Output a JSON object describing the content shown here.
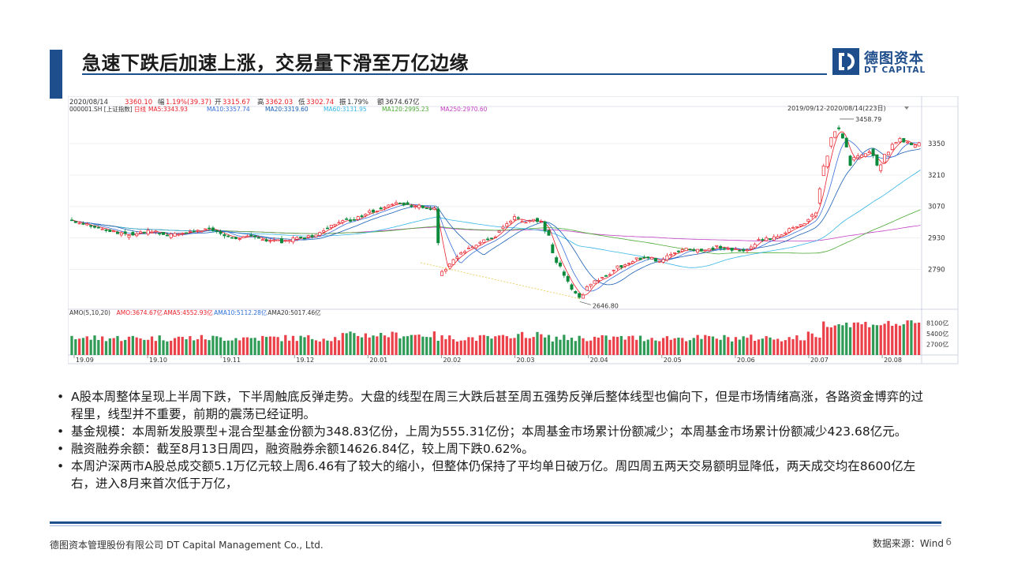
{
  "slide": {
    "title": "急速下跌后加速上涨，交易量下滑至万亿边缘",
    "logo_cn": "德图资本",
    "logo_en": "DT CAPITAL",
    "footer_left": "德图资本管理股份有限公司  DT Capital Management  Co., Ltd.",
    "source": "数据来源：Wind",
    "page_number": "6",
    "colors": {
      "accent": "#1f4e8c",
      "up": "#e8202a",
      "down": "#0a8a3a"
    }
  },
  "bullets": [
    "A股本周整体呈现上半周下跌，下半周触底反弹走势。大盘的线型在周三大跌后甚至周五强势反弹后整体线型也偏向下，但是市场情绪高涨，各路资金博弈的过程里，线型并不重要，前期的震荡已经证明。",
    "基金规模：本周新发股票型+混合型基金份额为348.83亿份，上周为555.31亿份；本周基金市场累计份额减少；本周基金市场累计份额减少423.68亿元。",
    "融资融券余额：截至8月13日周四，融资融券余额14626.84亿，较上周下跌0.62%。",
    "本周沪深两市A股总成交额5.1万亿元较上周6.46有了较大的缩小，但整体仍保持了平均单日破万亿。周四周五两天交易额明显降低，两天成交均在8600亿左右，进入8月来首次低于万亿，"
  ],
  "chart_data": {
    "type": "candlestick",
    "header": {
      "date": "2020/08/14",
      "price": "3360.10",
      "change_label": "幅",
      "change": "1.19%(39.37)",
      "open_label": "开",
      "open": "3315.67",
      "high_label": "高",
      "high": "3362.03",
      "low_label": "低",
      "low": "3302.74",
      "amp_label": "振",
      "amp": "1.79%",
      "amount_label": "额",
      "amount": "3674.67亿",
      "code": "000001.SH [上证指数]",
      "period": "日线",
      "range": "2019/09/12-2020/08/14(223日)"
    },
    "ma_legend": [
      {
        "name": "MA5:3343.93",
        "color": "#e8202a"
      },
      {
        "name": "MA10:3357.74",
        "color": "#3a6fd8"
      },
      {
        "name": "MA20:3319.60",
        "color": "#1a5fb4"
      },
      {
        "name": "MA60:3131.95",
        "color": "#36b6e6"
      },
      {
        "name": "MA120:2995.23",
        "color": "#4aa832"
      },
      {
        "name": "MA250:2970.60",
        "color": "#c040c0"
      }
    ],
    "y_ticks": [
      3350,
      3210,
      3070,
      2930,
      2790
    ],
    "ylim": [
      2620,
      3490
    ],
    "x_ticks": [
      "19.09",
      "19.10",
      "19.11",
      "19.12",
      "20.01",
      "20.02",
      "20.03",
      "20.04",
      "20.05",
      "20.06",
      "20.07",
      "20.08"
    ],
    "annotations": {
      "high": "3458.79",
      "low": "2646.80"
    },
    "volume_legend": [
      {
        "name": "AMO(5,10,20)",
        "color": "#333333"
      },
      {
        "name": "AMO:3674.67亿",
        "color": "#e8202a"
      },
      {
        "name": "AMA5:4552.93亿",
        "color": "#e8202a"
      },
      {
        "name": "AMA10:5112.28亿",
        "color": "#2a6fd8"
      },
      {
        "name": "AMA20:5017.46亿",
        "color": "#333333"
      }
    ],
    "volume_ticks": [
      "8100亿",
      "5400亿",
      "2700亿"
    ],
    "volume_ylim": [
      0,
      10000
    ],
    "close_path": [
      [
        0,
        3010
      ],
      [
        6,
        2990
      ],
      [
        12,
        2975
      ],
      [
        18,
        2960
      ],
      [
        24,
        2940
      ],
      [
        30,
        2955
      ],
      [
        36,
        2960
      ],
      [
        42,
        2940
      ],
      [
        48,
        2950
      ],
      [
        54,
        2965
      ],
      [
        60,
        2970
      ],
      [
        66,
        2940
      ],
      [
        72,
        2930
      ],
      [
        78,
        2935
      ],
      [
        84,
        2920
      ],
      [
        90,
        2915
      ],
      [
        96,
        2925
      ],
      [
        102,
        2935
      ],
      [
        108,
        2960
      ],
      [
        114,
        3005
      ],
      [
        120,
        3010
      ],
      [
        126,
        3040
      ],
      [
        132,
        3060
      ],
      [
        138,
        3085
      ],
      [
        144,
        3075
      ],
      [
        150,
        3070
      ],
      [
        156,
        3060
      ],
      [
        158,
        2760
      ],
      [
        162,
        2820
      ],
      [
        168,
        2870
      ],
      [
        174,
        2900
      ],
      [
        180,
        2930
      ],
      [
        186,
        2990
      ],
      [
        190,
        3020
      ],
      [
        194,
        3000
      ],
      [
        198,
        3010
      ],
      [
        202,
        3000
      ],
      [
        206,
        2870
      ],
      [
        210,
        2780
      ],
      [
        214,
        2700
      ],
      [
        218,
        2660
      ],
      [
        222,
        2730
      ],
      [
        228,
        2760
      ],
      [
        234,
        2800
      ],
      [
        240,
        2830
      ],
      [
        246,
        2850
      ],
      [
        252,
        2820
      ],
      [
        258,
        2870
      ],
      [
        264,
        2880
      ],
      [
        270,
        2870
      ],
      [
        276,
        2890
      ],
      [
        282,
        2880
      ],
      [
        288,
        2870
      ],
      [
        294,
        2920
      ],
      [
        300,
        2930
      ],
      [
        306,
        2960
      ],
      [
        312,
        2990
      ],
      [
        318,
        3040
      ],
      [
        321,
        3200
      ],
      [
        324,
        3350
      ],
      [
        327,
        3430
      ],
      [
        330,
        3380
      ],
      [
        333,
        3250
      ],
      [
        336,
        3300
      ],
      [
        339,
        3290
      ],
      [
        342,
        3320
      ],
      [
        345,
        3230
      ],
      [
        348,
        3300
      ],
      [
        351,
        3340
      ],
      [
        354,
        3370
      ],
      [
        357,
        3360
      ],
      [
        360,
        3340
      ],
      [
        363,
        3360
      ]
    ],
    "total_days": 364
  }
}
